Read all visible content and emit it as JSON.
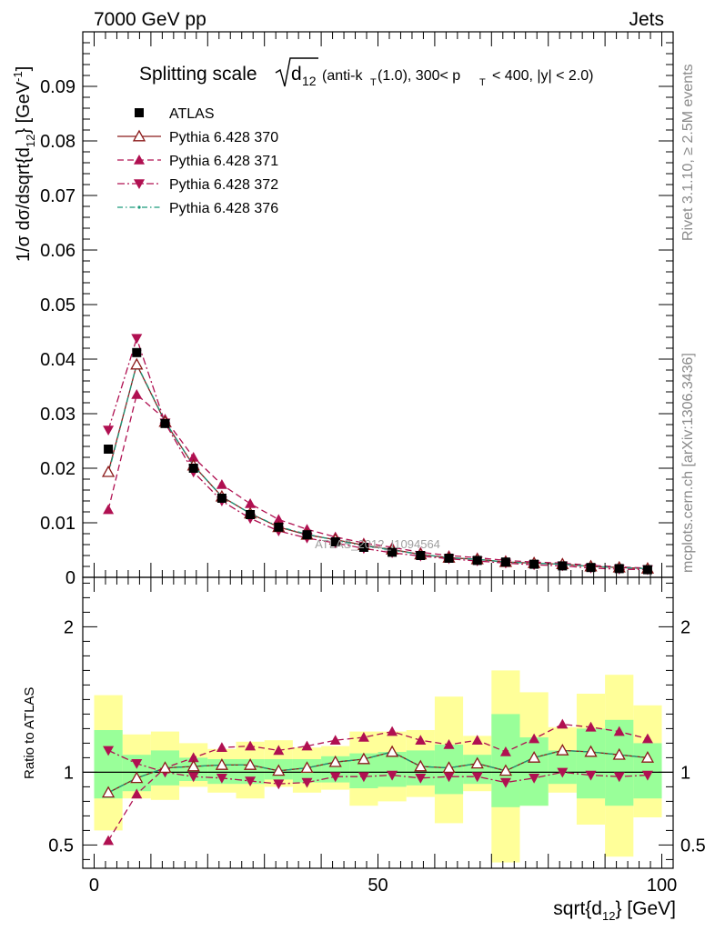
{
  "header": {
    "left": "7000 GeV pp",
    "right": "Jets",
    "side_top": "Rivet 3.1.10, ≥ 2.5M events",
    "side_bottom": "mcplots.cern.ch [arXiv:1306.3436]",
    "watermark": "ATLAS_2012_I1094564"
  },
  "title": {
    "prefix": "Splitting scale",
    "root_sym": "d",
    "root_sub": "12",
    "rest_a": "(anti-k",
    "rest_a_sub": "T",
    "rest_b": "(1.0), 300< p",
    "rest_b_sub": "T",
    "rest_c": "< 400, |y| < 2.0)"
  },
  "axes": {
    "ylabel_main": "1/σ dσ/dsqrt{d",
    "ylabel_sub": "12",
    "ylabel_end": "} [GeV",
    "ylabel_sup": "-1",
    "ylabel_close": "]",
    "ylabel_ratio": "Ratio to ATLAS",
    "xlabel_main": "sqrt{d",
    "xlabel_sub": "12",
    "xlabel_end": "} [GeV]"
  },
  "chart_data": {
    "type": "line",
    "x": [
      2.5,
      7.5,
      12.5,
      17.5,
      22.5,
      27.5,
      32.5,
      37.5,
      42.5,
      47.5,
      52.5,
      57.5,
      62.5,
      67.5,
      72.5,
      77.5,
      82.5,
      87.5,
      92.5,
      97.5
    ],
    "xlim": [
      -2,
      102
    ],
    "ylim": [
      0,
      0.1
    ],
    "ratio_ylim": [
      0.34,
      2.34
    ],
    "xticks": [
      0,
      50,
      100
    ],
    "yticks": [
      0,
      0.01,
      0.02,
      0.03,
      0.04,
      0.05,
      0.06,
      0.07,
      0.08,
      0.09
    ],
    "ytick_labels": [
      "0",
      "0.01",
      "0.02",
      "0.03",
      "0.04",
      "0.05",
      "0.06",
      "0.07",
      "0.08",
      "0.09"
    ],
    "ratio_yticks": [
      0.5,
      1,
      2
    ],
    "ratio_ytick_labels": [
      "0.5",
      "1",
      "2"
    ],
    "legend_position": "top-left",
    "data": {
      "name": "ATLAS",
      "values": [
        0.0235,
        0.0412,
        0.0282,
        0.02,
        0.0145,
        0.0115,
        0.0092,
        0.0078,
        0.0065,
        0.0055,
        0.0046,
        0.004,
        0.0035,
        0.0031,
        0.0028,
        0.0024,
        0.0021,
        0.0018,
        0.0016,
        0.0014
      ]
    },
    "band_yellow_lo": [
      0.6,
      0.82,
      0.81,
      0.9,
      0.86,
      0.82,
      0.9,
      0.86,
      0.88,
      0.77,
      0.8,
      0.83,
      0.65,
      0.87,
      0.38,
      0.77,
      0.86,
      0.64,
      0.42,
      0.69
    ],
    "band_yellow_hi": [
      1.53,
      1.26,
      1.28,
      1.2,
      1.16,
      1.21,
      1.22,
      1.17,
      1.18,
      1.28,
      1.28,
      1.29,
      1.52,
      1.25,
      1.7,
      1.55,
      1.31,
      1.54,
      1.67,
      1.46
    ],
    "band_green_lo": [
      0.82,
      0.87,
      0.91,
      0.94,
      0.92,
      0.92,
      0.95,
      0.93,
      0.93,
      0.89,
      0.9,
      0.91,
      0.85,
      0.92,
      0.76,
      0.77,
      0.92,
      0.82,
      0.77,
      0.82
    ],
    "band_green_hi": [
      1.29,
      1.12,
      1.15,
      1.1,
      1.09,
      1.09,
      1.09,
      1.09,
      1.11,
      1.13,
      1.14,
      1.15,
      1.19,
      1.12,
      1.4,
      1.24,
      1.15,
      1.3,
      1.36,
      1.2
    ],
    "series": [
      {
        "name": "Pythia 6.428 370",
        "color": "#8b1a1a",
        "marker": "triangle-up-open",
        "dash": "solid",
        "values": [
          0.0193,
          0.039,
          0.0285,
          0.0205,
          0.0148,
          0.0117,
          0.0092,
          0.0078,
          0.0069,
          0.0059,
          0.0051,
          0.0042,
          0.0036,
          0.0033,
          0.0028,
          0.0026,
          0.0024,
          0.002,
          0.0018,
          0.0016
        ],
        "ratio": [
          0.86,
          0.96,
          1.03,
          1.04,
          1.05,
          1.05,
          1.01,
          1.03,
          1.07,
          1.09,
          1.14,
          1.04,
          1.03,
          1.06,
          1.01,
          1.1,
          1.15,
          1.14,
          1.12,
          1.1
        ]
      },
      {
        "name": "Pythia 6.428 371",
        "color": "#b01051",
        "marker": "triangle-up",
        "dash": "7,4",
        "values": [
          0.0124,
          0.0335,
          0.029,
          0.022,
          0.017,
          0.0135,
          0.0106,
          0.0088,
          0.0074,
          0.0063,
          0.0055,
          0.0046,
          0.004,
          0.0036,
          0.0031,
          0.0028,
          0.0026,
          0.0022,
          0.0019,
          0.0017
        ],
        "ratio": [
          0.53,
          0.85,
          1.03,
          1.1,
          1.17,
          1.18,
          1.15,
          1.18,
          1.22,
          1.24,
          1.28,
          1.22,
          1.19,
          1.22,
          1.14,
          1.23,
          1.33,
          1.31,
          1.28,
          1.23
        ]
      },
      {
        "name": "Pythia 6.428 372",
        "color": "#b01051",
        "marker": "triangle-down",
        "dash": "8,3,2,3",
        "values": [
          0.027,
          0.0438,
          0.0283,
          0.0193,
          0.014,
          0.0108,
          0.0085,
          0.0072,
          0.0063,
          0.0053,
          0.0045,
          0.0039,
          0.0034,
          0.003,
          0.0026,
          0.0023,
          0.0021,
          0.0017,
          0.0015,
          0.0014
        ],
        "ratio": [
          1.15,
          1.06,
          1.0,
          0.97,
          0.96,
          0.94,
          0.92,
          0.93,
          0.97,
          0.97,
          0.98,
          0.96,
          0.97,
          0.97,
          0.93,
          0.96,
          1.0,
          0.98,
          0.97,
          0.98
        ]
      },
      {
        "name": "Pythia 6.428 376",
        "color": "#1a9a7a",
        "marker": "dot",
        "dash": "6,3,1.5,3",
        "values": [
          0.019,
          0.0391,
          0.0286,
          0.0205,
          0.0148,
          0.0117,
          0.0093,
          0.0079,
          0.0068,
          0.0058,
          0.005,
          0.0042,
          0.0036,
          0.0033,
          0.0028,
          0.0026,
          0.0024,
          0.002,
          0.0018,
          0.0016
        ],
        "ratio": [
          0.86,
          0.96,
          1.03,
          1.04,
          1.05,
          1.05,
          1.01,
          1.03,
          1.07,
          1.09,
          1.14,
          1.04,
          1.03,
          1.06,
          1.01,
          1.1,
          1.15,
          1.14,
          1.12,
          1.1
        ]
      }
    ]
  }
}
